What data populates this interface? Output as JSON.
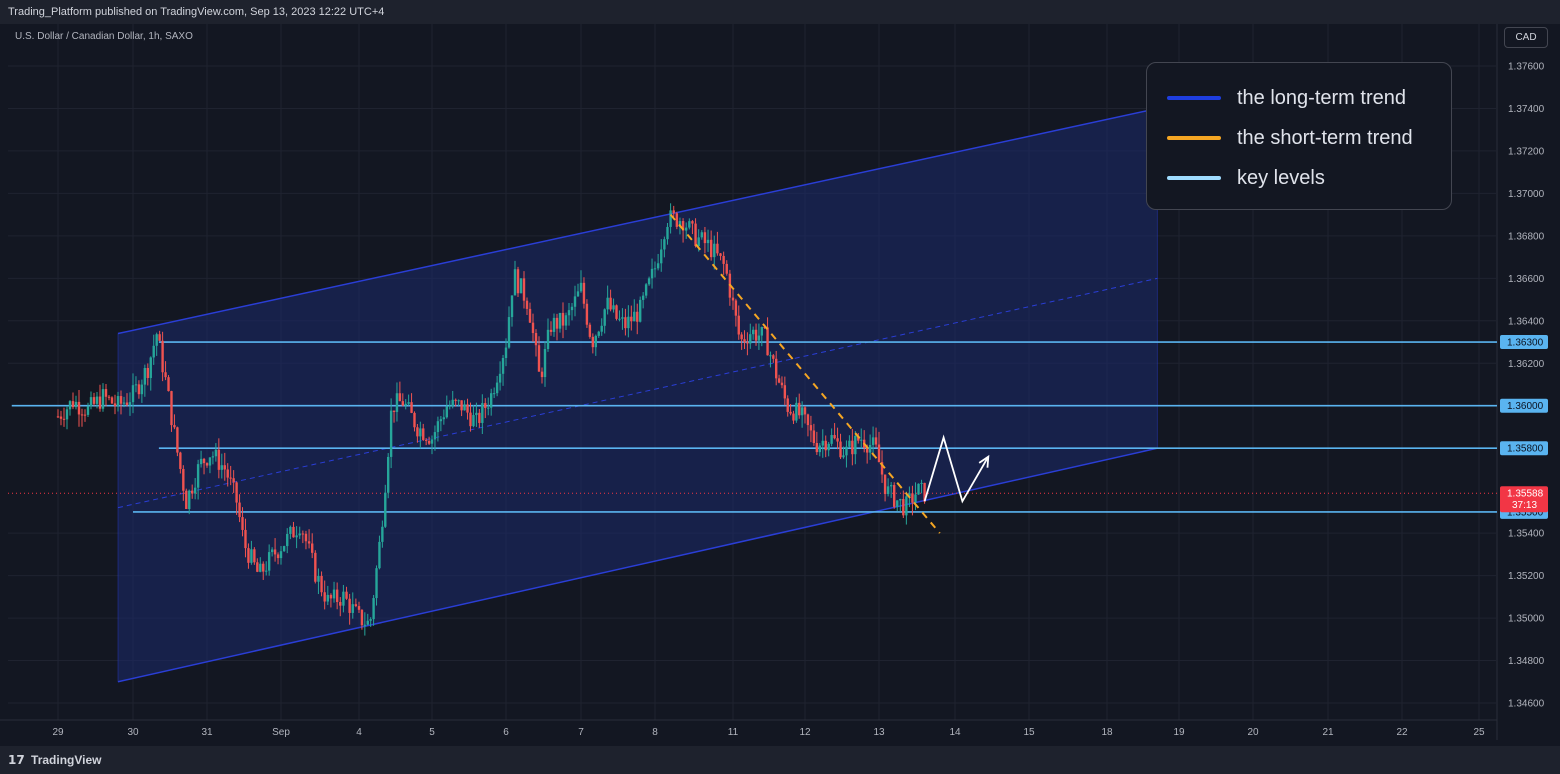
{
  "header": {
    "published_text": "Trading_Platform published on TradingView.com, Sep 13, 2023 12:22 UTC+4"
  },
  "symbol_title": "U.S. Dollar / Canadian Dollar, 1h, SAXO",
  "currency_button": "CAD",
  "footer": {
    "logo_mark": "17",
    "logo_text": "TradingView"
  },
  "legend": [
    {
      "label": "the long-term trend",
      "color": "#1e3ee0"
    },
    {
      "label": "the short-term trend",
      "color": "#f5a623"
    },
    {
      "label": "key levels",
      "color": "#9fdcff"
    }
  ],
  "colors": {
    "bull": "#26a69a",
    "bear": "#ef5350",
    "channel_fill": "#1b2a6b",
    "channel_line": "#2a3ed6",
    "key_level": "#5ab4f0",
    "short_trend": "#f5a623",
    "projection": "#ffffff",
    "current_price": "#f23645"
  },
  "chart_data": {
    "type": "candlestick",
    "instrument": "U.S. Dollar / Canadian Dollar",
    "timeframe": "1h",
    "source": "SAXO",
    "ylim": [
      1.3455,
      1.3775
    ],
    "x_ticks": [
      "29",
      "30",
      "31",
      "Sep",
      "4",
      "5",
      "6",
      "7",
      "8",
      "11",
      "12",
      "13",
      "14",
      "15",
      "18",
      "19",
      "20",
      "21",
      "22",
      "25"
    ],
    "y_ticks": [
      "1.37600",
      "1.37400",
      "1.37200",
      "1.37000",
      "1.36800",
      "1.36600",
      "1.36400",
      "1.36200",
      "1.35400",
      "1.35200",
      "1.35000",
      "1.34800",
      "1.34600"
    ],
    "key_levels": [
      {
        "value": 1.363,
        "label": "1.36300"
      },
      {
        "value": 1.36,
        "label": "1.36000"
      },
      {
        "value": 1.358,
        "label": "1.35800"
      },
      {
        "value": 1.355,
        "label": "1.35500"
      }
    ],
    "current_price": {
      "value": 1.35588,
      "label": "1.35588",
      "countdown": "37:13"
    },
    "channel": {
      "upper": [
        [
          0.8,
          1.3634
        ],
        [
          14.7,
          1.374
        ]
      ],
      "lower": [
        [
          0.8,
          1.347
        ],
        [
          14.7,
          1.358
        ]
      ],
      "mid": [
        [
          0.8,
          1.3552
        ],
        [
          14.7,
          1.366
        ]
      ]
    },
    "short_trend_line": [
      [
        8.2,
        1.369
      ],
      [
        11.8,
        1.354
      ]
    ],
    "projection": [
      [
        11.6,
        1.3555
      ],
      [
        11.85,
        1.3585
      ],
      [
        12.1,
        1.3555
      ],
      [
        12.45,
        1.3576
      ]
    ],
    "waypoints": [
      [
        0.0,
        1.3595
      ],
      [
        0.2,
        1.3602
      ],
      [
        0.4,
        1.3598
      ],
      [
        0.6,
        1.3604
      ],
      [
        0.8,
        1.36
      ],
      [
        1.0,
        1.3605
      ],
      [
        1.2,
        1.3618
      ],
      [
        1.32,
        1.3634
      ],
      [
        1.45,
        1.361
      ],
      [
        1.6,
        1.3578
      ],
      [
        1.72,
        1.3555
      ],
      [
        1.9,
        1.3572
      ],
      [
        2.05,
        1.3578
      ],
      [
        2.25,
        1.357
      ],
      [
        2.4,
        1.3555
      ],
      [
        2.5,
        1.3535
      ],
      [
        2.7,
        1.352
      ],
      [
        2.9,
        1.353
      ],
      [
        3.1,
        1.3538
      ],
      [
        3.25,
        1.3545
      ],
      [
        3.45,
        1.352
      ],
      [
        3.6,
        1.3508
      ],
      [
        3.8,
        1.351
      ],
      [
        4.0,
        1.35
      ],
      [
        4.15,
        1.3497
      ],
      [
        4.3,
        1.354
      ],
      [
        4.45,
        1.36
      ],
      [
        4.6,
        1.3602
      ],
      [
        4.8,
        1.359
      ],
      [
        5.0,
        1.3585
      ],
      [
        5.2,
        1.36
      ],
      [
        5.4,
        1.36
      ],
      [
        5.6,
        1.3592
      ],
      [
        5.8,
        1.3605
      ],
      [
        6.0,
        1.363
      ],
      [
        6.1,
        1.3662
      ],
      [
        6.3,
        1.3648
      ],
      [
        6.45,
        1.3612
      ],
      [
        6.6,
        1.3638
      ],
      [
        6.8,
        1.364
      ],
      [
        7.0,
        1.3655
      ],
      [
        7.15,
        1.363
      ],
      [
        7.35,
        1.3648
      ],
      [
        7.5,
        1.364
      ],
      [
        7.6,
        1.3638
      ],
      [
        7.8,
        1.3645
      ],
      [
        8.0,
        1.3665
      ],
      [
        8.15,
        1.3688
      ],
      [
        8.35,
        1.3688
      ],
      [
        8.5,
        1.368
      ],
      [
        8.7,
        1.3675
      ],
      [
        8.9,
        1.3665
      ],
      [
        9.1,
        1.363
      ],
      [
        9.25,
        1.3635
      ],
      [
        9.45,
        1.3632
      ],
      [
        9.6,
        1.3615
      ],
      [
        9.75,
        1.36
      ],
      [
        9.95,
        1.3595
      ],
      [
        10.15,
        1.3582
      ],
      [
        10.35,
        1.3585
      ],
      [
        10.55,
        1.3578
      ],
      [
        10.75,
        1.3585
      ],
      [
        10.95,
        1.358
      ],
      [
        11.1,
        1.356
      ],
      [
        11.25,
        1.3555
      ],
      [
        11.35,
        1.3552
      ],
      [
        11.5,
        1.356
      ],
      [
        11.6,
        1.35588
      ]
    ]
  }
}
